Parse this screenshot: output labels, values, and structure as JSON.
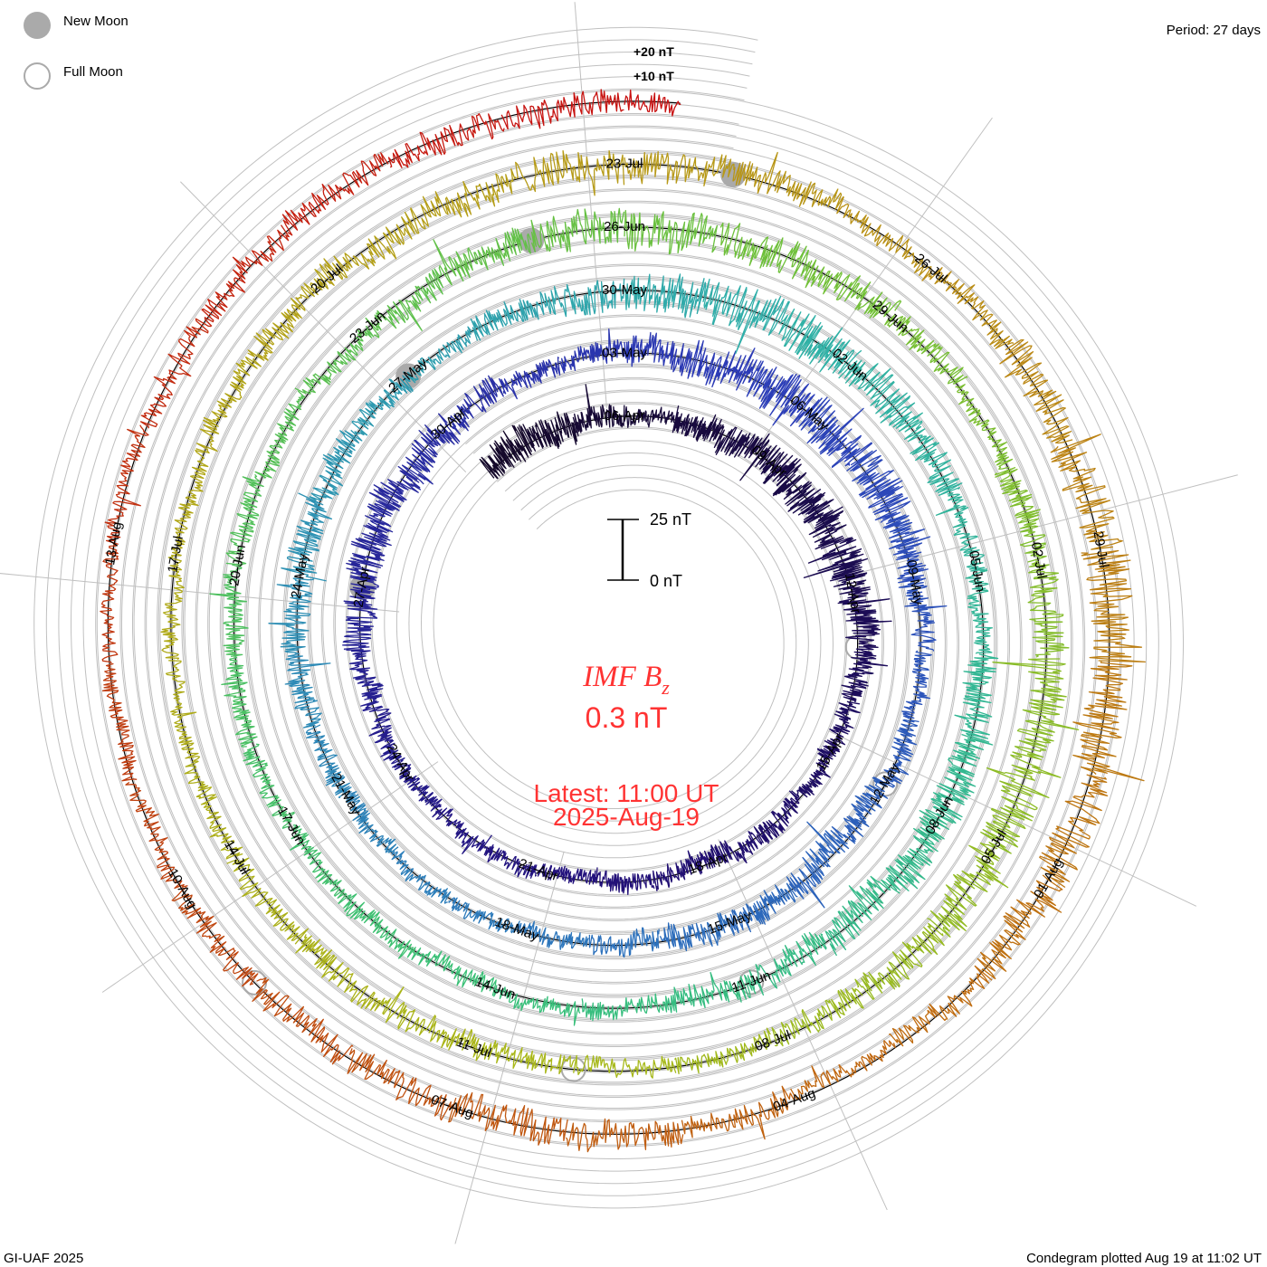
{
  "legend": {
    "new_moon_label": "New Moon",
    "full_moon_label": "Full Moon",
    "new_moon_color": "#aaaaaa",
    "full_moon_color": "#aaaaaa"
  },
  "period_label": "Period: 27 days",
  "footer": {
    "credit": "GI-UAF 2025",
    "plotted": "Condegram plotted Aug 19 at 11:02 UT"
  },
  "center": {
    "title_main": "IMF B",
    "title_sub": "z",
    "value": "0.3 nT",
    "latest": "Latest: 11:00 UT",
    "date": "2025-Aug-19",
    "text_color": "#ff3333"
  },
  "chart_data": {
    "type": "line",
    "subtype": "spiral condegram",
    "title": "IMF Bz",
    "period_days": 27,
    "start": "2025-04-03",
    "end": "2025-08-19 11:00 UT",
    "latest_value_nT": 0.3,
    "ring_labels": [
      "+20 nT",
      "+10 nT"
    ],
    "ring_step_nT": 5,
    "scale_bar": {
      "top_label": "25 nT",
      "bottom_label": "0 nT",
      "top_value": 25,
      "bottom_value": 0
    },
    "date_label_interval_days": 3,
    "date_labels": [
      "06-Apr",
      "09-Apr",
      "12-Apr",
      "15-Apr",
      "18-Apr",
      "21-Apr",
      "24-Apr",
      "27-Apr",
      "30-Apr",
      "03-May",
      "06-May",
      "09-May",
      "12-May",
      "15-May",
      "18-May",
      "21-May",
      "24-May",
      "27-May",
      "30-May",
      "02-Jun",
      "05-Jun",
      "08-Jun",
      "11-Jun",
      "14-Jun",
      "17-Jun",
      "20-Jun",
      "23-Jun",
      "26-Jun",
      "29-Jun",
      "02-Jul",
      "05-Jul",
      "08-Jul",
      "11-Jul",
      "14-Jul",
      "17-Jul",
      "20-Jul",
      "23-Jul",
      "26-Jul",
      "29-Jul",
      "01-Aug",
      "04-Aug",
      "07-Aug",
      "10-Aug",
      "13-Aug"
    ],
    "new_moons": [
      "2025-04-27",
      "2025-05-27",
      "2025-06-25",
      "2025-07-24"
    ],
    "full_moons": [
      "2025-04-13",
      "2025-05-12",
      "2025-06-11",
      "2025-07-10",
      "2025-08-09"
    ],
    "color_scale": [
      {
        "date": "2025-04-03",
        "color": "#140828"
      },
      {
        "date": "2025-04-20",
        "color": "#22107a"
      },
      {
        "date": "2025-05-05",
        "color": "#2c3cb8"
      },
      {
        "date": "2025-05-18",
        "color": "#2c78bc"
      },
      {
        "date": "2025-06-01",
        "color": "#30b0a8"
      },
      {
        "date": "2025-06-14",
        "color": "#38c078"
      },
      {
        "date": "2025-06-28",
        "color": "#70c038"
      },
      {
        "date": "2025-07-10",
        "color": "#a8b818"
      },
      {
        "date": "2025-07-24",
        "color": "#b89818"
      },
      {
        "date": "2025-08-03",
        "color": "#c06a10"
      },
      {
        "date": "2025-08-12",
        "color": "#c03a10"
      },
      {
        "date": "2025-08-19",
        "color": "#c81010"
      }
    ]
  }
}
